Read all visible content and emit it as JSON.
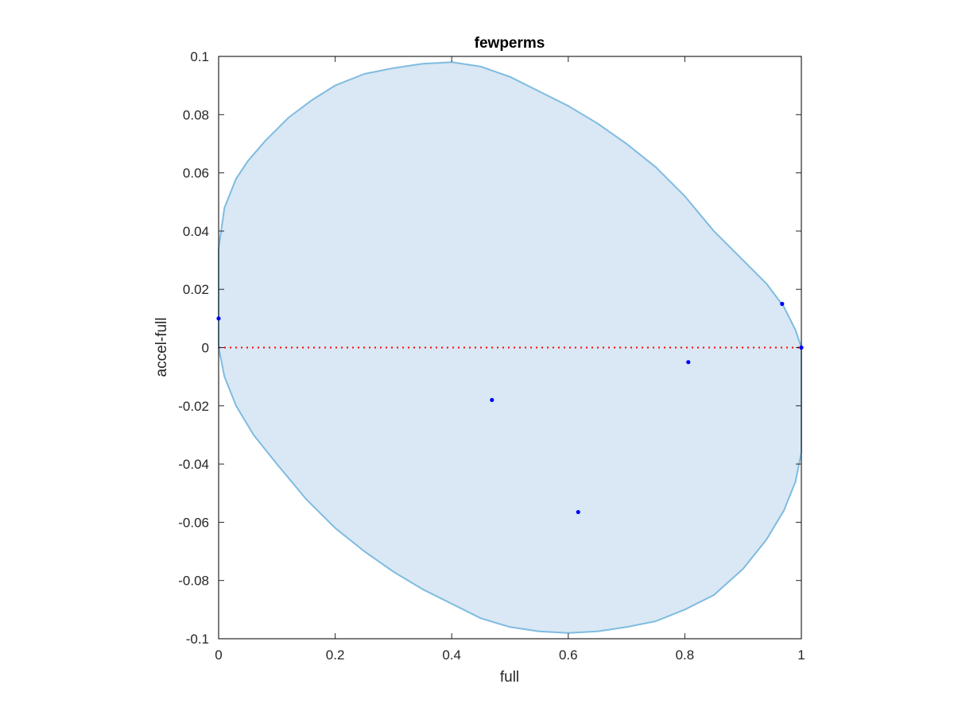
{
  "chart_data": {
    "type": "scatter",
    "title": "fewperms",
    "xlabel": "full",
    "ylabel": "accel-full",
    "xlim": [
      0,
      1
    ],
    "ylim": [
      -0.1,
      0.1
    ],
    "x_ticks": [
      0,
      0.2,
      0.4,
      0.6,
      0.8,
      1
    ],
    "x_tick_labels": [
      "0",
      "0.2",
      "0.4",
      "0.6",
      "0.8",
      "1"
    ],
    "y_ticks": [
      -0.1,
      -0.08,
      -0.06,
      -0.04,
      -0.02,
      0,
      0.02,
      0.04,
      0.06,
      0.08,
      0.1
    ],
    "y_tick_labels": [
      "-0.1",
      "-0.08",
      "-0.06",
      "-0.04",
      "-0.02",
      "0",
      "0.02",
      "0.04",
      "0.06",
      "0.08",
      "0.1"
    ],
    "grid": false,
    "legend": "none",
    "series": [
      {
        "x": [
          0,
          0.469,
          0.617,
          0.806,
          0.967,
          1.0
        ],
        "y": [
          0.01,
          -0.018,
          -0.0565,
          -0.005,
          0.015,
          0.0
        ],
        "color": "#0000ff",
        "marker": "dot"
      }
    ],
    "reference_line": {
      "y": 0,
      "color": "#ff0000",
      "style": "dotted"
    },
    "region": {
      "type": "ellipse-like filled region",
      "fill_color": "#d9e8f4",
      "edge_color": "#7fbbe0",
      "outline_points": [
        [
          0.0,
          0.034
        ],
        [
          0.01,
          0.048
        ],
        [
          0.03,
          0.058
        ],
        [
          0.05,
          0.064
        ],
        [
          0.08,
          0.071
        ],
        [
          0.12,
          0.079
        ],
        [
          0.16,
          0.085
        ],
        [
          0.2,
          0.09
        ],
        [
          0.25,
          0.094
        ],
        [
          0.3,
          0.096
        ],
        [
          0.35,
          0.0975
        ],
        [
          0.4,
          0.098
        ],
        [
          0.45,
          0.0965
        ],
        [
          0.5,
          0.093
        ],
        [
          0.55,
          0.088
        ],
        [
          0.6,
          0.083
        ],
        [
          0.65,
          0.077
        ],
        [
          0.7,
          0.07
        ],
        [
          0.75,
          0.062
        ],
        [
          0.8,
          0.052
        ],
        [
          0.85,
          0.04
        ],
        [
          0.9,
          0.03
        ],
        [
          0.94,
          0.022
        ],
        [
          0.97,
          0.014
        ],
        [
          0.99,
          0.006
        ],
        [
          1.0,
          0.0
        ],
        [
          1.0,
          -0.036
        ],
        [
          0.99,
          -0.046
        ],
        [
          0.97,
          -0.056
        ],
        [
          0.94,
          -0.066
        ],
        [
          0.9,
          -0.076
        ],
        [
          0.85,
          -0.085
        ],
        [
          0.8,
          -0.09
        ],
        [
          0.75,
          -0.094
        ],
        [
          0.7,
          -0.096
        ],
        [
          0.65,
          -0.0975
        ],
        [
          0.6,
          -0.098
        ],
        [
          0.55,
          -0.0975
        ],
        [
          0.5,
          -0.096
        ],
        [
          0.45,
          -0.093
        ],
        [
          0.4,
          -0.088
        ],
        [
          0.35,
          -0.083
        ],
        [
          0.3,
          -0.077
        ],
        [
          0.25,
          -0.07
        ],
        [
          0.2,
          -0.062
        ],
        [
          0.15,
          -0.052
        ],
        [
          0.1,
          -0.04
        ],
        [
          0.06,
          -0.03
        ],
        [
          0.03,
          -0.02
        ],
        [
          0.01,
          -0.01
        ],
        [
          0.0,
          0.0
        ]
      ]
    },
    "axis_color": "#262626"
  }
}
